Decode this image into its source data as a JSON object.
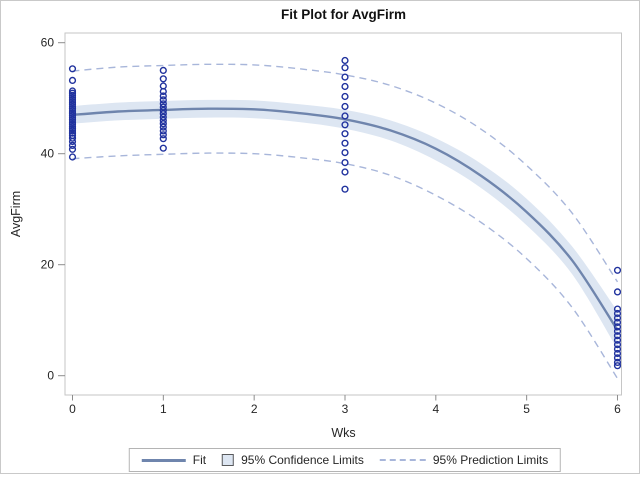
{
  "style": {
    "marker_color": "#20329e",
    "fit_color": "#6f85ad",
    "band_color": "#dde6f2",
    "prediction_color": "#a8b6da",
    "frame_color": "#c6c6c6",
    "tick_color": "#8c8c8c",
    "text_color": "#262626"
  },
  "chart_data": {
    "type": "scatter",
    "title": "Fit Plot for AvgFirm",
    "xlabel": "Wks",
    "ylabel": "AvgFirm",
    "xlim": [
      -0.1,
      6.05
    ],
    "ylim": [
      -3.5,
      61.7
    ],
    "x_ticks": [
      0,
      1,
      2,
      3,
      4,
      5,
      6
    ],
    "y_ticks": [
      0,
      20,
      40,
      60
    ],
    "grid": false,
    "legend_position": "bottom-center",
    "legend_labels": {
      "fit": "Fit",
      "confidence": "95% Confidence Limits",
      "prediction": "95% Prediction Limits"
    },
    "scatter_groups": [
      {
        "x": 0,
        "values": [
          55.3,
          53.2,
          51.3,
          50.9,
          50.5,
          50.1,
          49.7,
          49.3,
          48.9,
          48.5,
          48.1,
          47.7,
          47.3,
          46.9,
          46.5,
          46.1,
          45.7,
          45.3,
          44.9,
          44.5,
          44.1,
          43.7,
          43.3,
          42.8,
          42.2,
          41.5,
          40.8,
          39.4
        ]
      },
      {
        "x": 1,
        "values": [
          55.0,
          53.5,
          52.2,
          51.2,
          50.4,
          49.7,
          49.0,
          48.4,
          47.8,
          47.2,
          46.6,
          46.0,
          45.4,
          44.8,
          44.1,
          43.4,
          42.7,
          41.0
        ]
      },
      {
        "x": 3,
        "values": [
          56.8,
          55.5,
          53.8,
          52.1,
          50.3,
          48.5,
          46.8,
          45.2,
          43.6,
          41.9,
          40.2,
          38.4,
          36.7,
          33.6
        ]
      },
      {
        "x": 6,
        "values": [
          19.0,
          15.1,
          12.0,
          11.2,
          10.4,
          9.6,
          8.8,
          8.0,
          7.2,
          6.4,
          5.6,
          4.8,
          4.0,
          3.2,
          2.4,
          1.8
        ]
      }
    ],
    "fit_line": {
      "x": [
        0,
        0.5,
        1,
        1.5,
        2,
        2.5,
        3,
        3.5,
        4,
        4.5,
        5,
        5.5,
        6
      ],
      "y": [
        47.0,
        47.6,
        47.9,
        48.1,
        48.0,
        47.3,
        46.2,
        44.2,
        40.9,
        36.0,
        29.5,
        20.8,
        8.2
      ]
    },
    "confidence_band": {
      "x": [
        0,
        0.5,
        1,
        1.5,
        2,
        2.5,
        3,
        3.5,
        4,
        4.5,
        5,
        5.5,
        6
      ],
      "upper": [
        48.6,
        49.2,
        49.5,
        49.7,
        49.6,
        48.9,
        47.9,
        46.0,
        42.8,
        38.2,
        31.9,
        23.3,
        11.6
      ],
      "lower": [
        45.4,
        46.0,
        46.3,
        46.5,
        46.4,
        45.7,
        44.5,
        42.4,
        38.8,
        33.8,
        27.1,
        18.3,
        4.8
      ]
    },
    "prediction_limits": {
      "x": [
        0,
        0.5,
        1,
        1.5,
        2,
        2.5,
        3,
        3.5,
        4,
        4.5,
        5,
        5.5,
        6
      ],
      "upper": [
        54.9,
        55.6,
        55.9,
        56.1,
        56.0,
        55.3,
        54.2,
        52.3,
        49.1,
        44.4,
        37.9,
        29.3,
        16.9
      ],
      "lower": [
        39.1,
        39.6,
        39.9,
        40.1,
        40.0,
        39.3,
        38.2,
        36.1,
        32.5,
        27.6,
        21.1,
        12.3,
        -0.5
      ]
    }
  }
}
